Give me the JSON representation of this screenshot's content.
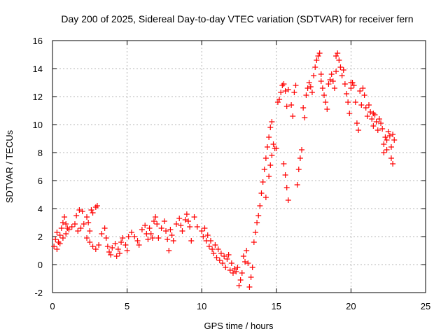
{
  "chart_data": {
    "type": "scatter",
    "title": "Day 200 of 2025, Sidereal Day-to-day VTEC variation (SDTVAR) for receiver fern",
    "xlabel": "GPS time / hours",
    "ylabel": "SDTVAR / TECUs",
    "xlim": [
      0,
      25
    ],
    "ylim": [
      -2,
      16
    ],
    "xticks": [
      0,
      5,
      10,
      15,
      20,
      25
    ],
    "xtick_labels": [
      "0",
      "5",
      "10",
      "15",
      "20",
      "25"
    ],
    "yticks": [
      -2,
      0,
      2,
      4,
      6,
      8,
      10,
      12,
      14,
      16
    ],
    "ytick_labels": [
      "-2",
      "0",
      "2",
      "4",
      "6",
      "8",
      "10",
      "12",
      "14",
      "16"
    ],
    "grid": true,
    "marker": "+",
    "color": "#ff0000",
    "series": [
      {
        "name": "SDTVAR",
        "points": [
          [
            0.1,
            1.3
          ],
          [
            0.2,
            1.8
          ],
          [
            0.3,
            2.3
          ],
          [
            0.4,
            1.6
          ],
          [
            0.5,
            2.1
          ],
          [
            0.6,
            2.6
          ],
          [
            0.7,
            3.0
          ],
          [
            0.8,
            3.4
          ],
          [
            0.9,
            2.9
          ],
          [
            1.0,
            2.6
          ],
          [
            0.3,
            1.1
          ],
          [
            0.5,
            1.5
          ],
          [
            0.7,
            1.9
          ],
          [
            0.9,
            2.2
          ],
          [
            1.1,
            2.5
          ],
          [
            1.3,
            2.7
          ],
          [
            1.5,
            2.9
          ],
          [
            1.6,
            3.5
          ],
          [
            1.8,
            3.9
          ],
          [
            2.0,
            3.8
          ],
          [
            1.7,
            2.4
          ],
          [
            1.9,
            2.6
          ],
          [
            2.1,
            2.9
          ],
          [
            2.3,
            3.4
          ],
          [
            2.4,
            3.0
          ],
          [
            2.5,
            2.4
          ],
          [
            2.6,
            3.9
          ],
          [
            2.7,
            3.7
          ],
          [
            2.9,
            4.1
          ],
          [
            3.0,
            4.2
          ],
          [
            2.3,
            1.9
          ],
          [
            2.5,
            1.6
          ],
          [
            2.7,
            1.3
          ],
          [
            2.9,
            1.1
          ],
          [
            3.1,
            1.4
          ],
          [
            3.3,
            2.2
          ],
          [
            3.5,
            2.6
          ],
          [
            3.6,
            1.9
          ],
          [
            3.7,
            1.3
          ],
          [
            3.8,
            0.9
          ],
          [
            3.9,
            0.7
          ],
          [
            4.0,
            1.2
          ],
          [
            4.2,
            1.5
          ],
          [
            4.4,
            1.1
          ],
          [
            4.5,
            0.8
          ],
          [
            4.3,
            0.6
          ],
          [
            4.6,
            1.6
          ],
          [
            4.7,
            1.9
          ],
          [
            4.9,
            1.4
          ],
          [
            5.0,
            1.0
          ],
          [
            5.1,
            2.0
          ],
          [
            5.3,
            2.3
          ],
          [
            5.5,
            2.0
          ],
          [
            5.7,
            1.7
          ],
          [
            5.8,
            1.4
          ],
          [
            6.0,
            2.5
          ],
          [
            6.2,
            2.8
          ],
          [
            6.3,
            2.2
          ],
          [
            6.4,
            1.8
          ],
          [
            6.5,
            2.6
          ],
          [
            6.6,
            2.2
          ],
          [
            6.7,
            1.9
          ],
          [
            6.8,
            3.1
          ],
          [
            6.9,
            3.4
          ],
          [
            7.0,
            2.9
          ],
          [
            7.1,
            1.9
          ],
          [
            7.3,
            2.6
          ],
          [
            7.5,
            3.1
          ],
          [
            7.6,
            2.4
          ],
          [
            7.7,
            1.8
          ],
          [
            7.8,
            1.0
          ],
          [
            7.9,
            2.5
          ],
          [
            8.0,
            2.1
          ],
          [
            8.1,
            1.7
          ],
          [
            8.3,
            2.9
          ],
          [
            8.5,
            3.3
          ],
          [
            8.6,
            2.8
          ],
          [
            8.7,
            2.4
          ],
          [
            8.9,
            3.2
          ],
          [
            9.0,
            3.6
          ],
          [
            9.1,
            3.1
          ],
          [
            9.2,
            2.7
          ],
          [
            9.3,
            1.7
          ],
          [
            9.5,
            3.4
          ],
          [
            9.7,
            2.7
          ],
          [
            10.0,
            2.4
          ],
          [
            10.1,
            2.0
          ],
          [
            10.2,
            2.6
          ],
          [
            10.3,
            1.7
          ],
          [
            10.4,
            2.1
          ],
          [
            10.5,
            1.3
          ],
          [
            10.6,
            1.7
          ],
          [
            10.7,
            1.1
          ],
          [
            10.8,
            0.8
          ],
          [
            10.9,
            1.4
          ],
          [
            11.0,
            0.5
          ],
          [
            11.1,
            1.1
          ],
          [
            11.2,
            0.3
          ],
          [
            11.3,
            0.8
          ],
          [
            11.4,
            0.1
          ],
          [
            11.5,
            0.6
          ],
          [
            11.6,
            -0.2
          ],
          [
            11.7,
            0.4
          ],
          [
            11.8,
            0.7
          ],
          [
            11.9,
            -0.4
          ],
          [
            12.0,
            0.1
          ],
          [
            12.1,
            -0.6
          ],
          [
            12.2,
            -0.3
          ],
          [
            12.3,
            -0.5
          ],
          [
            12.4,
            -0.2
          ],
          [
            12.5,
            -1.5
          ],
          [
            12.6,
            -1.1
          ],
          [
            12.7,
            -0.6
          ],
          [
            12.8,
            0.6
          ],
          [
            12.9,
            0.2
          ],
          [
            13.0,
            1.0
          ],
          [
            13.1,
            0.1
          ],
          [
            13.2,
            -1.6
          ],
          [
            13.3,
            -0.9
          ],
          [
            13.4,
            -0.2
          ],
          [
            13.5,
            1.6
          ],
          [
            13.6,
            2.3
          ],
          [
            13.7,
            3.0
          ],
          [
            13.8,
            3.5
          ],
          [
            13.9,
            4.2
          ],
          [
            14.0,
            5.1
          ],
          [
            14.1,
            5.9
          ],
          [
            14.2,
            6.8
          ],
          [
            14.3,
            7.6
          ],
          [
            14.4,
            8.4
          ],
          [
            14.5,
            9.1
          ],
          [
            14.6,
            9.8
          ],
          [
            14.7,
            10.2
          ],
          [
            14.5,
            6.3
          ],
          [
            14.6,
            7.1
          ],
          [
            14.7,
            7.8
          ],
          [
            14.8,
            8.6
          ],
          [
            14.9,
            8.3
          ],
          [
            15.0,
            8.3
          ],
          [
            14.3,
            4.8
          ],
          [
            15.1,
            11.6
          ],
          [
            15.2,
            11.8
          ],
          [
            15.3,
            12.3
          ],
          [
            15.4,
            12.8
          ],
          [
            15.5,
            12.9
          ],
          [
            15.6,
            12.4
          ],
          [
            15.7,
            11.3
          ],
          [
            15.8,
            12.5
          ],
          [
            15.5,
            7.2
          ],
          [
            15.6,
            6.4
          ],
          [
            15.7,
            5.5
          ],
          [
            15.8,
            4.6
          ],
          [
            16.0,
            11.4
          ],
          [
            16.1,
            10.6
          ],
          [
            16.2,
            12.3
          ],
          [
            16.3,
            12.8
          ],
          [
            16.4,
            5.7
          ],
          [
            16.5,
            6.8
          ],
          [
            16.6,
            7.6
          ],
          [
            16.7,
            8.2
          ],
          [
            16.8,
            11.2
          ],
          [
            16.9,
            10.5
          ],
          [
            17.0,
            12.1
          ],
          [
            17.1,
            12.6
          ],
          [
            17.2,
            13.0
          ],
          [
            17.3,
            12.7
          ],
          [
            17.4,
            12.3
          ],
          [
            17.5,
            13.5
          ],
          [
            17.6,
            14.1
          ],
          [
            17.7,
            14.6
          ],
          [
            17.8,
            14.9
          ],
          [
            17.9,
            15.1
          ],
          [
            18.0,
            13.1
          ],
          [
            18.1,
            12.6
          ],
          [
            18.2,
            12.1
          ],
          [
            18.3,
            11.6
          ],
          [
            18.4,
            11.1
          ],
          [
            18.5,
            12.9
          ],
          [
            18.6,
            13.2
          ],
          [
            18.7,
            13.6
          ],
          [
            18.8,
            13.1
          ],
          [
            18.9,
            12.6
          ],
          [
            19.0,
            14.9
          ],
          [
            19.1,
            15.1
          ],
          [
            19.2,
            14.6
          ],
          [
            19.3,
            14.1
          ],
          [
            19.4,
            13.5
          ],
          [
            19.5,
            13.9
          ],
          [
            19.6,
            12.9
          ],
          [
            19.7,
            12.2
          ],
          [
            19.8,
            11.6
          ],
          [
            19.9,
            10.8
          ],
          [
            20.0,
            12.6
          ],
          [
            20.1,
            13.0
          ],
          [
            20.2,
            12.8
          ],
          [
            20.3,
            11.6
          ],
          [
            20.4,
            10.1
          ],
          [
            20.5,
            9.6
          ],
          [
            20.6,
            12.4
          ],
          [
            20.7,
            11.4
          ],
          [
            20.8,
            12.6
          ],
          [
            20.9,
            12.1
          ],
          [
            21.0,
            11.2
          ],
          [
            21.1,
            10.6
          ],
          [
            21.2,
            11.4
          ],
          [
            21.3,
            10.9
          ],
          [
            21.4,
            10.4
          ],
          [
            21.5,
            9.9
          ],
          [
            21.6,
            10.7
          ],
          [
            21.7,
            10.2
          ],
          [
            21.8,
            9.6
          ],
          [
            21.9,
            10.4
          ],
          [
            22.0,
            10.1
          ],
          [
            22.1,
            9.7
          ],
          [
            22.2,
            8.6
          ],
          [
            22.3,
            9.1
          ],
          [
            22.4,
            8.9
          ],
          [
            22.5,
            9.5
          ],
          [
            22.6,
            9.2
          ],
          [
            22.7,
            8.4
          ],
          [
            22.7,
            7.6
          ],
          [
            22.8,
            7.2
          ],
          [
            22.9,
            8.9
          ],
          [
            22.8,
            9.3
          ],
          [
            22.4,
            8.2
          ],
          [
            22.2,
            8.0
          ],
          [
            21.5,
            10.8
          ],
          [
            20.0,
            13.0
          ],
          [
            19.0,
            13.8
          ],
          [
            18.0,
            13.6
          ]
        ]
      }
    ]
  }
}
